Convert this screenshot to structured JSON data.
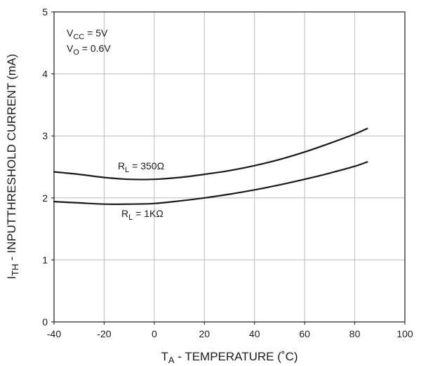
{
  "chart_data": {
    "type": "line",
    "xlabel": {
      "main": "T",
      "sub": "A",
      "rest": " - TEMPERATURE (˚C)"
    },
    "ylabel": {
      "main": "I",
      "sub": "TH",
      "rest": " - INPUTTHRESHOLD  CURRENT (mA)"
    },
    "xlim": [
      -40,
      100
    ],
    "ylim": [
      0,
      5
    ],
    "xticks": [
      -40,
      -20,
      0,
      20,
      40,
      60,
      80,
      100
    ],
    "yticks": [
      0,
      1,
      2,
      3,
      4,
      5
    ],
    "grid": true,
    "conditions": [
      {
        "main": "V",
        "sub": "CC",
        "rest": " = 5V"
      },
      {
        "main": "V",
        "sub": "O",
        "rest": " = 0.6V"
      }
    ],
    "series": [
      {
        "label": {
          "main": "R",
          "sub": "L",
          "rest": " = 350Ω"
        },
        "x": [
          -40,
          -30,
          -20,
          -10,
          0,
          10,
          20,
          30,
          40,
          50,
          60,
          70,
          80,
          85
        ],
        "y": [
          2.42,
          2.38,
          2.33,
          2.3,
          2.3,
          2.33,
          2.38,
          2.44,
          2.52,
          2.62,
          2.74,
          2.88,
          3.03,
          3.12
        ]
      },
      {
        "label": {
          "main": "R",
          "sub": "L",
          "rest": " = 1KΩ"
        },
        "x": [
          -40,
          -30,
          -20,
          -10,
          0,
          10,
          20,
          30,
          40,
          50,
          60,
          70,
          80,
          85
        ],
        "y": [
          1.94,
          1.92,
          1.9,
          1.9,
          1.91,
          1.95,
          2.0,
          2.06,
          2.13,
          2.21,
          2.3,
          2.4,
          2.51,
          2.58
        ]
      }
    ]
  }
}
